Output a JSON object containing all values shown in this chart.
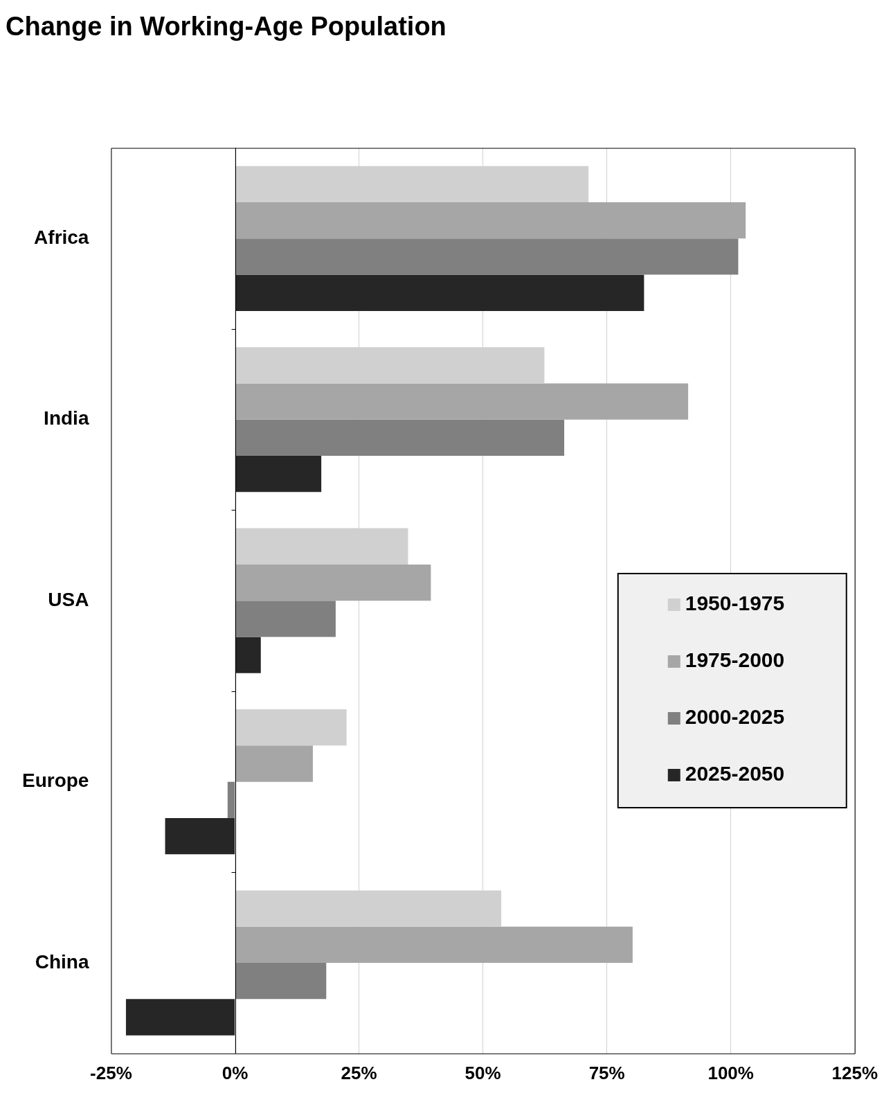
{
  "chart_data": {
    "type": "bar",
    "orientation": "horizontal",
    "title": "Change in Working-Age Population",
    "categories": [
      "Africa",
      "India",
      "USA",
      "Europe",
      "China"
    ],
    "series": [
      {
        "name": "1950-1975",
        "color": "#d0d0d0",
        "values": [
          71.3,
          62.4,
          34.9,
          22.5,
          53.7
        ]
      },
      {
        "name": "1975-2000",
        "color": "#a6a6a6",
        "values": [
          103,
          91.4,
          39.5,
          15.7,
          80.2
        ]
      },
      {
        "name": "2000-2025",
        "color": "#808080",
        "values": [
          101.5,
          66.4,
          20.3,
          -1.5,
          18.4
        ]
      },
      {
        "name": "2025-2050",
        "color": "#262626",
        "values": [
          82.5,
          17.4,
          5.2,
          -14.1,
          -22
        ]
      }
    ],
    "xlim": [
      -25,
      125
    ],
    "xticks": [
      {
        "value": -25,
        "label": "-25%"
      },
      {
        "value": 0,
        "label": "0%"
      },
      {
        "value": 25,
        "label": "25%"
      },
      {
        "value": 50,
        "label": "50%"
      },
      {
        "value": 75,
        "label": "75%"
      },
      {
        "value": 100,
        "label": "100%"
      },
      {
        "value": 125,
        "label": "125%"
      }
    ],
    "grid": "x",
    "legend": "right"
  }
}
